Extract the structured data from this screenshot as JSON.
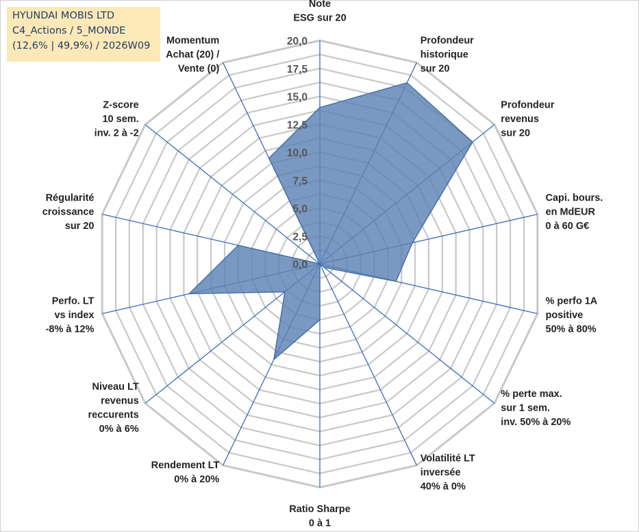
{
  "header": {
    "line1": "HYUNDAI MOBIS LTD",
    "line2": "C4_Actions / 5_MONDE",
    "line3": "(12,6% | 49,9%) / 2026W09"
  },
  "colors": {
    "fill": "#5b82b5",
    "stroke": "#4a6fa5",
    "grid": "#c8c8c8",
    "spoke": "#3a6cb8"
  },
  "chart_data": {
    "type": "radar",
    "title": "",
    "rmin": 0,
    "rmax": 20,
    "ticks": [
      "0,0",
      "2,5",
      "5,0",
      "7,5",
      "10,0",
      "12,5",
      "15,0",
      "17,5",
      "20,0"
    ],
    "categories": [
      [
        "Note",
        "ESG sur 20"
      ],
      [
        "Profondeur",
        "historique",
        "sur 20"
      ],
      [
        "Profondeur",
        "revenus",
        "sur 20"
      ],
      [
        "Capi. bours.",
        "en MdEUR",
        "0 à 60 G€"
      ],
      [
        "% perfo 1A",
        "positive",
        "50% à 80%"
      ],
      [
        "% perte max.",
        "sur 1 sem.",
        "inv. 50% à 20%"
      ],
      [
        "Volatilité LT",
        "inversée",
        "40% à 0%"
      ],
      [
        "Ratio Sharpe",
        "0 à 1"
      ],
      [
        "Rendement LT",
        "0% à 20%"
      ],
      [
        "Niveau LT",
        "revenus",
        "reccurents",
        "0% à 6%"
      ],
      [
        "Perfo. LT",
        "vs index",
        "-8% à 12%"
      ],
      [
        "Régularité",
        "croissance",
        "sur 20"
      ],
      [
        "Z-score",
        "10 sem.",
        "inv. 2 à -2"
      ],
      [
        "Momentum",
        "Achat (20) /",
        "Vente (0)"
      ]
    ],
    "series": [
      {
        "name": "HYUNDAI MOBIS LTD",
        "values": [
          14.0,
          18.0,
          17.5,
          8.5,
          7.0,
          0.5,
          0.0,
          5.0,
          9.5,
          4.0,
          12.0,
          7.5,
          0.0,
          10.5
        ]
      }
    ]
  }
}
